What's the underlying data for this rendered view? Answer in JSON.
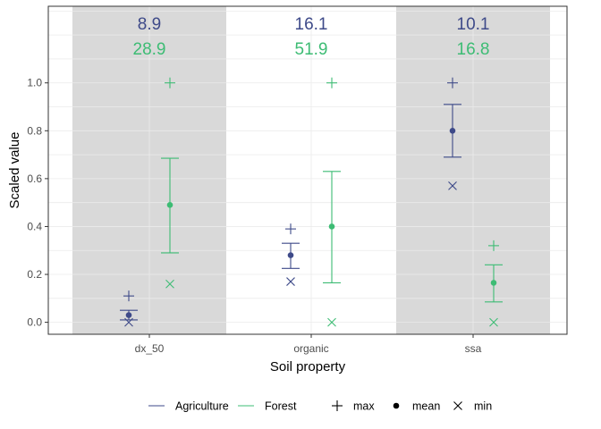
{
  "colors": {
    "agriculture": "#3e4a89",
    "forest": "#3dbc74",
    "band": "#d9d9d9",
    "grid": "#ebebeb",
    "panel_border": "#333333",
    "tick_text": "#4d4d4d"
  },
  "chart_data": {
    "type": "scatter",
    "xlabel": "Soil property",
    "ylabel": "Scaled value",
    "categories": [
      "dx_50",
      "organic",
      "ssa"
    ],
    "ylim": [
      -0.05,
      1.32
    ],
    "yticks": [
      0.0,
      0.2,
      0.4,
      0.6,
      0.8,
      1.0
    ],
    "ytick_labels": [
      "0.0",
      "0.2",
      "0.4",
      "0.6",
      "0.8",
      "1.0"
    ],
    "grid": true,
    "shaded_categories": [
      "dx_50",
      "ssa"
    ],
    "legend_position": "bottom",
    "legend": {
      "series": [
        "Agriculture",
        "Forest"
      ],
      "markers": [
        {
          "symbol": "plus",
          "label": "max"
        },
        {
          "symbol": "circle",
          "label": "mean"
        },
        {
          "symbol": "cross",
          "label": "min"
        }
      ]
    },
    "series": [
      {
        "name": "Agriculture",
        "color_key": "agriculture",
        "mean": [
          0.03,
          0.28,
          0.8
        ],
        "error_low": [
          0.01,
          0.225,
          0.69
        ],
        "error_high": [
          0.05,
          0.33,
          0.91
        ],
        "max": [
          0.11,
          0.39,
          1.0
        ],
        "min": [
          0.0,
          0.17,
          0.57
        ],
        "top_labels": [
          "8.9",
          "16.1",
          "10.1"
        ]
      },
      {
        "name": "Forest",
        "color_key": "forest",
        "mean": [
          0.49,
          0.4,
          0.165
        ],
        "error_low": [
          0.29,
          0.165,
          0.085
        ],
        "error_high": [
          0.685,
          0.63,
          0.24
        ],
        "max": [
          1.0,
          1.0,
          0.32
        ],
        "min": [
          0.16,
          0.0,
          0.0
        ],
        "top_labels": [
          "28.9",
          "51.9",
          "16.8"
        ]
      }
    ]
  }
}
